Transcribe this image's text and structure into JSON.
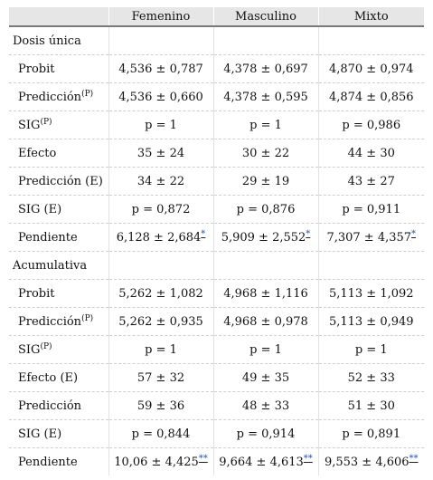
{
  "table": {
    "headers": [
      "",
      "Femenino",
      "Masculino",
      "Mixto"
    ],
    "rows": [
      {
        "type": "section",
        "label": "Dosis única"
      },
      {
        "label": "Probit",
        "cells": [
          {
            "text": "4,536 ± 0,787"
          },
          {
            "text": "4,378 ± 0,697"
          },
          {
            "text": "4,870 ± 0,974"
          }
        ]
      },
      {
        "label": "Predicción",
        "sup": "(P)",
        "cells": [
          {
            "text": "4,536 ± 0,660"
          },
          {
            "text": "4,378 ± 0,595"
          },
          {
            "text": "4,874 ± 0,856"
          }
        ]
      },
      {
        "label": "SIG",
        "sup": "(P)",
        "cells": [
          {
            "text": "p  = 1"
          },
          {
            "text": "p  = 1"
          },
          {
            "text": "p  = 0,986"
          }
        ]
      },
      {
        "label": "Efecto",
        "cells": [
          {
            "text": "35 ± 24"
          },
          {
            "text": "30 ± 22"
          },
          {
            "text": "44 ± 30"
          }
        ]
      },
      {
        "label": "Predicción (E)",
        "cells": [
          {
            "text": "34 ± 22"
          },
          {
            "text": "29 ± 19"
          },
          {
            "text": "43 ± 27"
          }
        ]
      },
      {
        "label": "SIG (E)",
        "cells": [
          {
            "text": "p  = 0,872"
          },
          {
            "text": "p  = 0,876"
          },
          {
            "text": "p  = 0,911"
          }
        ]
      },
      {
        "label": "Pendiente",
        "cells": [
          {
            "text": "6,128 ± 2,684",
            "fn": "*"
          },
          {
            "text": "5,909 ± 2,552",
            "fn": "*"
          },
          {
            "text": "7,307 ± 4,357",
            "fn": "*"
          }
        ]
      },
      {
        "type": "section",
        "label": "Acumulativa"
      },
      {
        "label": "Probit",
        "cells": [
          {
            "text": "5,262 ± 1,082"
          },
          {
            "text": "4,968 ± 1,116"
          },
          {
            "text": "5,113 ± 1,092"
          }
        ]
      },
      {
        "label": "Predicción",
        "sup": "(P)",
        "cells": [
          {
            "text": "5,262 ± 0,935"
          },
          {
            "text": "4,968 ± 0,978"
          },
          {
            "text": "5,113 ± 0,949"
          }
        ]
      },
      {
        "label": "SIG",
        "sup": "(P)",
        "cells": [
          {
            "text": "p  = 1"
          },
          {
            "text": "p  = 1"
          },
          {
            "text": "p  = 1"
          }
        ]
      },
      {
        "label": "Efecto (E)",
        "cells": [
          {
            "text": "57 ± 32"
          },
          {
            "text": "49 ± 35"
          },
          {
            "text": "52 ± 33"
          }
        ]
      },
      {
        "label": "Predicción",
        "cells": [
          {
            "text": "59 ± 36"
          },
          {
            "text": "48 ± 33"
          },
          {
            "text": "51 ± 30"
          }
        ]
      },
      {
        "label": "SIG (E)",
        "cells": [
          {
            "text": "p  = 0,844"
          },
          {
            "text": "p  = 0,914"
          },
          {
            "text": "p  = 0,891"
          }
        ]
      },
      {
        "label": "Pendiente",
        "cells": [
          {
            "text": "10,06 ± 4,425",
            "fn": "**"
          },
          {
            "text": "9,664 ± 4,613",
            "fn": "**"
          },
          {
            "text": "9,553 ± 4,606",
            "fn": "**"
          }
        ]
      }
    ]
  }
}
